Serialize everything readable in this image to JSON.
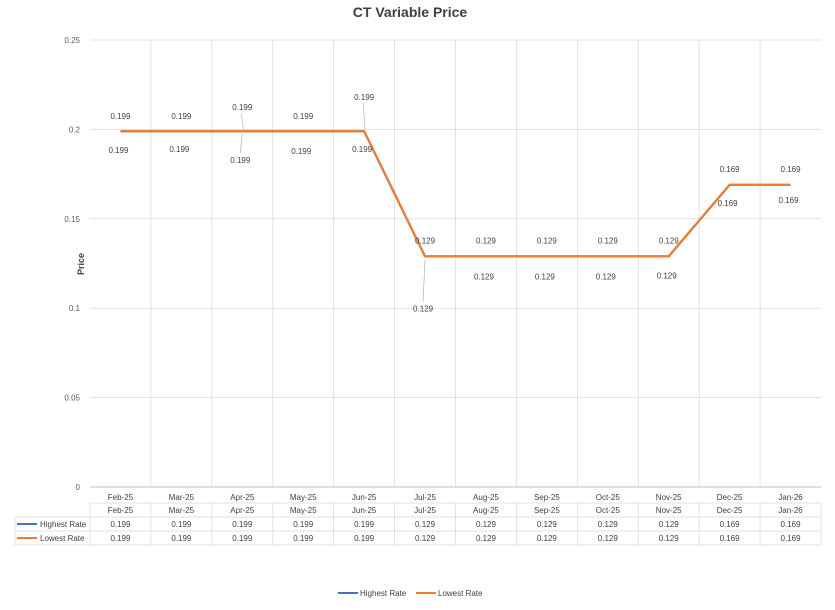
{
  "chart_data": {
    "type": "line",
    "title": "CT Variable Price",
    "xlabel": "",
    "ylabel": "Price",
    "ylim": [
      0,
      0.25
    ],
    "yticks": [
      0,
      0.05,
      0.1,
      0.15,
      0.2,
      0.25
    ],
    "categories": [
      "Feb-25",
      "Mar-25",
      "Apr-25",
      "May-25",
      "Jun-25",
      "Jul-25",
      "Aug-25",
      "Sep-25",
      "Oct-25",
      "Nov-25",
      "Dec-25",
      "Jan-26"
    ],
    "series": [
      {
        "name": "Highest Rate",
        "color": "#4472c4",
        "values": [
          0.199,
          0.199,
          0.199,
          0.199,
          0.199,
          0.129,
          0.129,
          0.129,
          0.129,
          0.129,
          0.169,
          0.169
        ],
        "data_labels": [
          "0.199",
          "0.199",
          "0.199",
          "0.199",
          "0.199",
          "0.129",
          "0.129",
          "0.129",
          "0.129",
          "0.129",
          "0.169",
          "0.169"
        ]
      },
      {
        "name": "Lowest Rate",
        "color": "#ed7d31",
        "values": [
          0.199,
          0.199,
          0.199,
          0.199,
          0.199,
          0.129,
          0.129,
          0.129,
          0.129,
          0.129,
          0.169,
          0.169
        ],
        "data_labels": [
          "0.199",
          "0.199",
          "0.199",
          "0.199",
          "0.199",
          "0.129",
          "0.129",
          "0.129",
          "0.129",
          "0.129",
          "0.169",
          "0.169"
        ]
      }
    ],
    "grid": true,
    "data_table": true,
    "legend": "bottom"
  }
}
